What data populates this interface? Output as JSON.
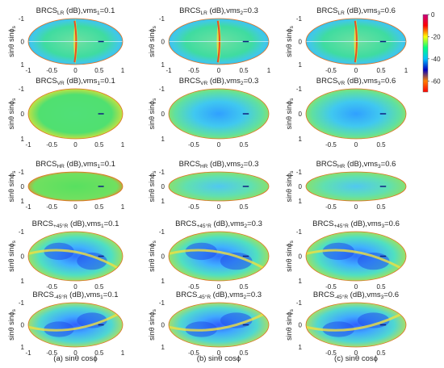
{
  "chart_data": {
    "type": "heatmap",
    "colorbar": {
      "ticks": [
        0,
        -20,
        -40,
        -60
      ],
      "range": [
        -70,
        0
      ],
      "colormap": "jet-reversed",
      "colors_top_to_bottom": [
        "#c80080",
        "#ff0000",
        "#ffff00",
        "#00ff80",
        "#00c0ff",
        "#0000c0",
        "#ff8000",
        "#ff0000"
      ]
    },
    "axes": {
      "xlim": [
        -1,
        1
      ],
      "ylim_top_to_bottom": [
        -1,
        1
      ],
      "xticks_full": [
        "-1",
        "-0.5",
        "0",
        "0.5",
        "1"
      ],
      "xticks_mid": [
        "-0.5",
        "0",
        "0.5"
      ],
      "xticks_right": [
        "-0.5",
        "0",
        "0.5",
        "1"
      ],
      "yticks": [
        "-1",
        "0",
        "1"
      ],
      "xticks_row0_col0": [
        "-1",
        "-0.5",
        "0",
        "0.5",
        "1"
      ],
      "ylabel": {
        "main": "sinθ sinϕ",
        "sub": "s"
      }
    },
    "polarizations": [
      {
        "base": "BRCS",
        "sub": "LR"
      },
      {
        "base": "BRCS",
        "sub": "VR"
      },
      {
        "base": "BRCS",
        "sub": "HR"
      },
      {
        "base": "BRCS",
        "sub": "+45°R"
      },
      {
        "base": "BRCS",
        "sub": "-45°R"
      }
    ],
    "columns": [
      {
        "vms_label": "vms",
        "vms_sub": "1",
        "value": "0.1",
        "xlabel": "(a) sinθ cosϕ"
      },
      {
        "vms_label": "vms",
        "vms_sub": "2",
        "value": "0.3",
        "xlabel": "(b) sinθ cosϕ"
      },
      {
        "vms_label": "vms",
        "vms_sub": "3",
        "value": "0.6",
        "xlabel": "(c) sinθ cosϕ"
      }
    ],
    "titles": [
      [
        "BRCS LR (dB),vms 1 =0.1",
        "BRCS LR (dB),vms 2 =0.3",
        "BRCS LR (dB),vms 3 =0.6"
      ],
      [
        "BRCS VR (dB),vms 1 =0.1",
        "BRCS VR (dB),vms 2 =0.3",
        "BRCS VR (dB),vms 3 =0.6"
      ],
      [
        "BRCS HR (dB),vms 1 =0.1",
        "BRCS HR (dB),vms 2 =0.3",
        "BRCS HR (dB),vms 3 =0.6"
      ],
      [
        "BRCS +45°R (dB),vms 1 =0.1",
        "BRCS +45°R (dB),vms 2 =0.3",
        "BRCS +45°R (dB),vms 3 =0.6"
      ],
      [
        "BRCS -45°R (dB),vms 1 =0.1",
        "BRCS -45°R (dB),vms 2 =0.3",
        "BRCS -45°R (dB),vms 3 =0.6"
      ]
    ],
    "units": "(dB)"
  }
}
